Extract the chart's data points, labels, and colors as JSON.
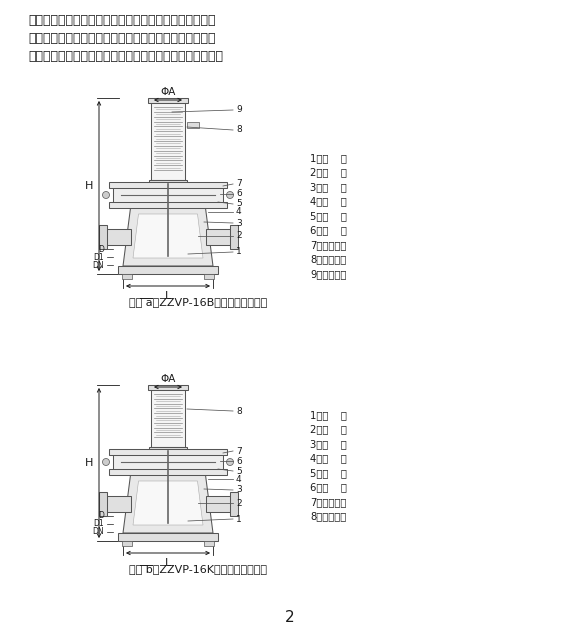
{
  "background_color": "#ffffff",
  "page_number": "2",
  "paragraph_text": "理，如阀前压力降低，作用于膜片上的力减小，由于弹簧\n的反作用力，带动阀芚，使阀门开启度减小，直到阀前压\n力上升到设定値为止。设定値也可通过弹簧的调节而达到。",
  "caption_a": "图一 a、ZZVP-16B自力式微压调节阀",
  "caption_b": "图一 b、ZZVP-16K自力式微压调节阀",
  "labels_a": [
    "1、阀    体",
    "2、阀    坐",
    "3、阀    芚",
    "4、阀    杆",
    "5、膜    盖",
    "6、膜    片",
    "7、压缩弹簧",
    "8、气源接头",
    "9、调节螺母"
  ],
  "labels_b": [
    "1、阀    体",
    "2、阀    坐",
    "3、阀    芚",
    "4、阀    杆",
    "5、膜    盖",
    "6、膜    片",
    "7、压缩弹簧",
    "8、调节螺母"
  ],
  "text_color": "#1a1a1a",
  "valve_color": "#555555",
  "phi_a_label": "ΦA",
  "h_label": "H",
  "d_label": "D",
  "d1_label": "D1",
  "dn_label": "DN",
  "l_label": "L"
}
